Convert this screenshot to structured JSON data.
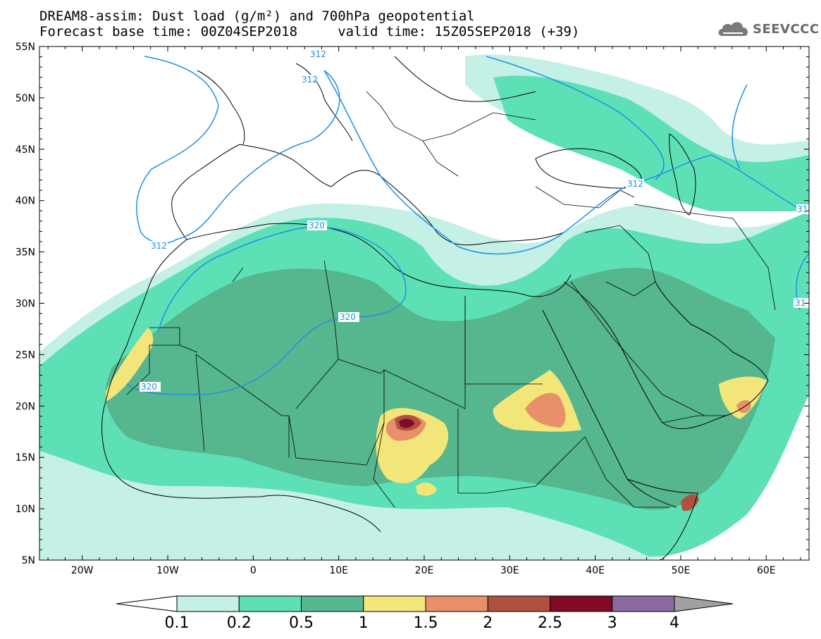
{
  "title_line1": "DREAM8-assim: Dust load (g/m²) and 700hPa geopotential",
  "title_line2": "Forecast base time: 00Z04SEP2018     valid time: 15Z05SEP2018 (+39)",
  "logo": {
    "text": "SEEVCCC",
    "icon": "cloud-logo-icon",
    "color": "#6a6a6a"
  },
  "axes": {
    "lon_ticks": [
      "20W",
      "10W",
      "0",
      "10E",
      "20E",
      "30E",
      "40E",
      "50E",
      "60E"
    ],
    "lat_ticks": [
      "55N",
      "50N",
      "45N",
      "40N",
      "35N",
      "30N",
      "25N",
      "20N",
      "15N",
      "10N",
      "5N"
    ],
    "lon_range": [
      -25,
      65
    ],
    "lat_range": [
      5,
      55
    ]
  },
  "colorbar": {
    "labels": [
      "0.1",
      "0.2",
      "0.5",
      "1",
      "1.5",
      "2",
      "2.5",
      "3",
      "4"
    ],
    "colors": [
      "#c4f0e6",
      "#5ee0b6",
      "#56b68e",
      "#f2e67a",
      "#e8906a",
      "#b05040",
      "#820a28",
      "#8a6aa0",
      "#a0a0a0"
    ],
    "extend_low_color": "#ffffff"
  },
  "contours": [
    {
      "value": "312",
      "labels": [
        "312",
        "312",
        "312",
        "312",
        "31",
        "31"
      ]
    },
    {
      "value": "320",
      "labels": [
        "320",
        "320",
        "320"
      ]
    }
  ],
  "contour_color": "#1e90e8"
}
